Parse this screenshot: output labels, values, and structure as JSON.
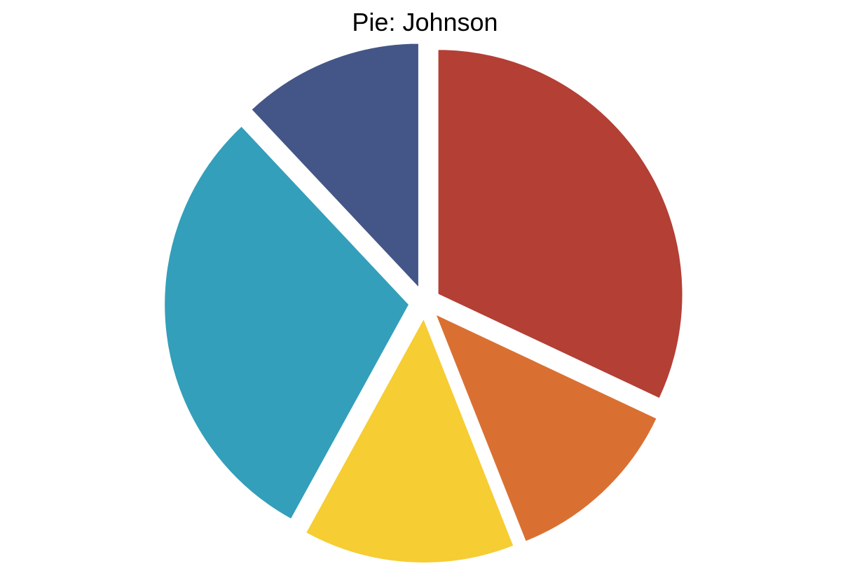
{
  "chart_data": {
    "type": "pie",
    "title": "Pie: Johnson",
    "start_angle_deg": 0,
    "direction": "clockwise",
    "slices": [
      {
        "value": 32,
        "color": "#b33f35"
      },
      {
        "value": 12,
        "color": "#d97032"
      },
      {
        "value": 14,
        "color": "#f6cd32"
      },
      {
        "value": 30,
        "color": "#339fba"
      },
      {
        "value": 12,
        "color": "#435687"
      }
    ]
  }
}
